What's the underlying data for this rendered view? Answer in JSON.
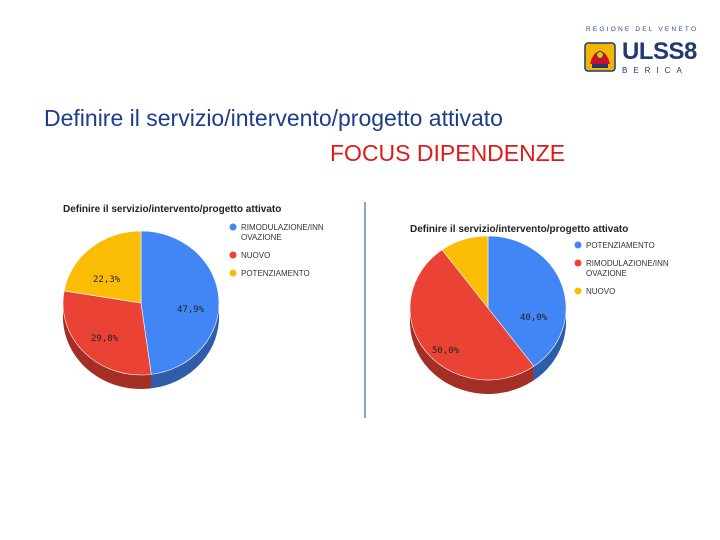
{
  "header": {
    "logo_region": "REGIONE DEL VENETO",
    "logo_name": "ULSS8",
    "logo_city": "BERICA",
    "title_line1": "Definire il servizio/intervento/progetto attivato",
    "title_line2": "FOCUS DIPENDENZE"
  },
  "colors": {
    "blue": "#4285f4",
    "red": "#ea4335",
    "yellow": "#fbbc05"
  },
  "chart_data": [
    {
      "type": "pie",
      "title": "Definire il servizio/intervento/progetto attivato",
      "categories": [
        "RIMODULAZIONE/INNOVAZIONE",
        "NUOVO",
        "POTENZIAMENTO"
      ],
      "legend_lines": [
        [
          "RIMODULAZIONE/INN",
          "OVAZIONE"
        ],
        [
          "NUOVO"
        ],
        [
          "POTENZIAMENTO"
        ]
      ],
      "values": [
        47.9,
        29.8,
        22.3
      ],
      "labels": [
        "47,9%",
        "29,8%",
        "22,3%"
      ],
      "colors": [
        "#4285f4",
        "#ea4335",
        "#fbbc05"
      ],
      "legend": "right"
    },
    {
      "type": "pie",
      "title": "Definire il servizio/intervento/progetto attivato",
      "categories": [
        "POTENZIAMENTO",
        "RIMODULAZIONE/INNOVAZIONE",
        "NUOVO"
      ],
      "legend_lines": [
        [
          "POTENZIAMENTO"
        ],
        [
          "RIMODULAZIONE/INN",
          "OVAZIONE"
        ],
        [
          "NUOVO"
        ]
      ],
      "values": [
        40.0,
        50.0,
        10.0
      ],
      "labels": [
        "40,0%",
        "50,0%",
        ""
      ],
      "colors": [
        "#4285f4",
        "#ea4335",
        "#fbbc05"
      ],
      "legend": "right"
    }
  ]
}
